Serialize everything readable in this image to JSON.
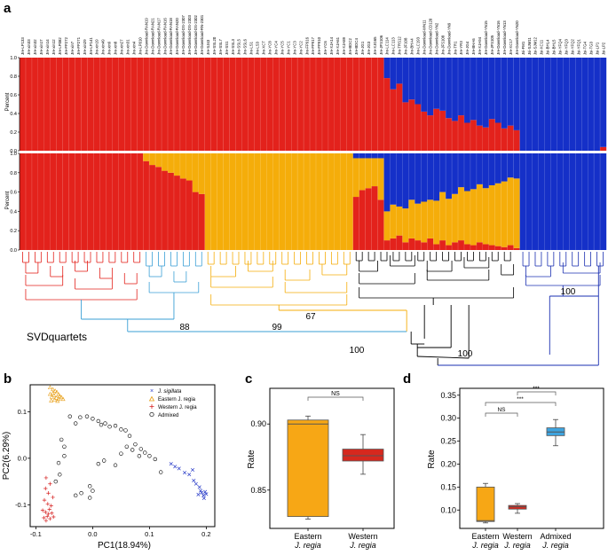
{
  "panel_letters": {
    "a": "a",
    "b": "b",
    "c": "c",
    "d": "d"
  },
  "colors": {
    "red": "#e3221c",
    "blue": "#1530c8",
    "orange": "#f5ad0a",
    "black": "#000000",
    "skyblue": "#3a9fd6",
    "navy": "#1a2fb0",
    "boxblue": "#3ea4df",
    "boxred": "#d6281e",
    "boxorange": "#f7a715"
  },
  "panel_a": {
    "ylabel_top": "Percent",
    "ylabel_bottom": "Percent",
    "yticks": [
      "0.0",
      "0.2",
      "0.4",
      "0.6",
      "0.8",
      "1.0"
    ],
    "sample_labels": [
      "Jre-LP133",
      "Jre-xin33",
      "Jre-xin32",
      "Jre-xin17",
      "Jre-xin14",
      "Jre-xin12",
      "Jre-LP082",
      "Jre-FP272",
      "Jre-xin7",
      "Jre-FP271",
      "Jre-xin29",
      "Jre-LP141",
      "Jre-xin19",
      "Jre-xin49",
      "Jre-xin9",
      "Jre-xin8",
      "Jre-xin27",
      "Jre-xin31",
      "Jre-xin4",
      "Jre-LP010",
      "Jre-Download-RAN19",
      "Jre-Download-RAN21",
      "Jre-Download-RAN17",
      "Jre-Download-RAN16",
      "Jre-Download-RAN18",
      "Jre-Download-RAN20",
      "Jre-Download-DS-2307",
      "Jre-Download-DS-2303",
      "Jre-Download-DS-2302",
      "Jre-Download-RN-2301",
      "Jre-SJ43",
      "Jre-SSL20",
      "Jre-SSL7",
      "Jre-SS1",
      "Jre-SSL3",
      "Jre-SSL5",
      "Jre-SSL6",
      "Jre-LS1",
      "Jre-LS3",
      "Jre-XCT",
      "Jre-YC8",
      "Jre-YC4",
      "Jre-YC5",
      "Jre-YC1",
      "Jre-YC3",
      "Jre-YC2",
      "Jre-FP916",
      "Jre-FP917",
      "Jre-FP910",
      "Jre-YC6",
      "Jre-XJA14",
      "Jre-XJA61",
      "Jre-XJA89",
      "Jre-BDC2",
      "Jre-BDC4",
      "Jre-JG1",
      "Jre-JG3",
      "Jre-XJG65",
      "Jre-JFS106",
      "Jre-LC114",
      "Jre-LC113",
      "Jre-TRS12",
      "Jre-JF108",
      "Jre-BHA4",
      "Jre-LC193",
      "Jre-Download-WN11",
      "Jre-Download-CD120",
      "Jre-Download-YN2",
      "Jre-JFS108",
      "Jre-Download-YN9",
      "Jre-TR1",
      "Jre-YR3",
      "Jre-JG4",
      "Jre-BHA6",
      "Jre-XJA94",
      "Jre-Download-YN15",
      "Jre-JFS105",
      "Jre-Download-YN16",
      "Jre-Download-YN13",
      "Jre-XC17",
      "Jre-Download-YN20",
      "Jsi-FM1",
      "Jsi-SJM11",
      "Jsi-SJM12",
      "Jsi-XC11",
      "Jsi-BHL4",
      "Jsi-BHL5",
      "Jsi-YFQ4",
      "Jsi-YFQ3",
      "Jsi-YFQ2",
      "Jsi-YFQ1",
      "Jsi-TG4",
      "Jsi-TG3",
      "Jsi-LP1",
      "Jsi-LP2"
    ],
    "tree_label": "SVDquartets",
    "bootstrap_labels": [
      "88",
      "99",
      "67",
      "100",
      "100",
      "100"
    ]
  },
  "panel_b": {
    "chart_data": {
      "type": "scatter",
      "xlabel": "PC1(18.94%)",
      "ylabel": "PC2(6.29%)",
      "xlim": [
        -0.11,
        0.215
      ],
      "ylim": [
        -0.147,
        0.158
      ],
      "xticks": [
        "-0.1",
        "0.0",
        "0.1",
        "0.2"
      ],
      "yticks": [
        "-0.1",
        "0.0",
        "0.1"
      ],
      "legend_position": "top-right",
      "series": [
        {
          "name": "J. sigillata",
          "marker": "x",
          "color": "#2a3cc8",
          "points": [
            [
              0.138,
              -0.012
            ],
            [
              0.145,
              -0.018
            ],
            [
              0.152,
              -0.022
            ],
            [
              0.162,
              -0.031
            ],
            [
              0.17,
              -0.035
            ],
            [
              0.178,
              -0.048
            ],
            [
              0.182,
              -0.055
            ],
            [
              0.188,
              -0.062
            ],
            [
              0.19,
              -0.07
            ],
            [
              0.192,
              -0.074
            ],
            [
              0.195,
              -0.08
            ],
            [
              0.198,
              -0.072
            ],
            [
              0.2,
              -0.077
            ],
            [
              0.196,
              -0.086
            ],
            [
              0.186,
              -0.078
            ],
            [
              0.176,
              -0.025
            ]
          ]
        },
        {
          "name": "Eastern J. regia",
          "marker": "triangle",
          "color": "#e8a018",
          "points": [
            [
              -0.075,
              0.152
            ],
            [
              -0.07,
              0.148
            ],
            [
              -0.066,
              0.145
            ],
            [
              -0.063,
              0.142
            ],
            [
              -0.07,
              0.14
            ],
            [
              -0.075,
              0.138
            ],
            [
              -0.06,
              0.137
            ],
            [
              -0.068,
              0.135
            ],
            [
              -0.058,
              0.134
            ],
            [
              -0.072,
              0.132
            ],
            [
              -0.064,
              0.13
            ],
            [
              -0.055,
              0.131
            ],
            [
              -0.06,
              0.127
            ],
            [
              -0.067,
              0.126
            ],
            [
              -0.052,
              0.127
            ],
            [
              -0.073,
              0.124
            ],
            [
              -0.062,
              0.123
            ]
          ]
        },
        {
          "name": "Western J. regia",
          "marker": "plus",
          "color": "#d62020",
          "points": [
            [
              -0.082,
              -0.042
            ],
            [
              -0.075,
              -0.055
            ],
            [
              -0.083,
              -0.065
            ],
            [
              -0.078,
              -0.075
            ],
            [
              -0.085,
              -0.09
            ],
            [
              -0.079,
              -0.098
            ],
            [
              -0.073,
              -0.102
            ],
            [
              -0.088,
              -0.112
            ],
            [
              -0.083,
              -0.116
            ],
            [
              -0.078,
              -0.12
            ],
            [
              -0.072,
              -0.118
            ],
            [
              -0.08,
              -0.125
            ],
            [
              -0.086,
              -0.128
            ],
            [
              -0.075,
              -0.13
            ],
            [
              -0.069,
              -0.126
            ],
            [
              -0.082,
              -0.134
            ],
            [
              -0.076,
              -0.11
            ],
            [
              -0.07,
              -0.084
            ]
          ]
        },
        {
          "name": "Admixed",
          "marker": "circle",
          "color": "#000000",
          "points": [
            [
              -0.055,
              0.04
            ],
            [
              -0.05,
              0.025
            ],
            [
              -0.04,
              0.09
            ],
            [
              -0.03,
              0.075
            ],
            [
              -0.022,
              0.088
            ],
            [
              -0.01,
              0.09
            ],
            [
              0.0,
              0.085
            ],
            [
              0.01,
              0.08
            ],
            [
              0.015,
              0.072
            ],
            [
              0.022,
              0.075
            ],
            [
              0.03,
              0.068
            ],
            [
              0.04,
              0.07
            ],
            [
              0.05,
              0.062
            ],
            [
              0.058,
              0.06
            ],
            [
              0.065,
              0.048
            ],
            [
              0.075,
              0.03
            ],
            [
              0.085,
              0.02
            ],
            [
              0.092,
              0.012
            ],
            [
              0.1,
              0.005
            ],
            [
              0.11,
              -0.002
            ],
            [
              0.06,
              0.025
            ],
            [
              0.07,
              0.018
            ],
            [
              0.02,
              -0.005
            ],
            [
              0.01,
              -0.012
            ],
            [
              -0.005,
              -0.06
            ],
            [
              0.0,
              -0.07
            ],
            [
              -0.02,
              -0.075
            ],
            [
              -0.03,
              -0.08
            ],
            [
              -0.005,
              -0.085
            ],
            [
              0.05,
              0.01
            ],
            [
              0.04,
              -0.015
            ],
            [
              0.082,
              0.005
            ],
            [
              -0.06,
              -0.01
            ],
            [
              -0.058,
              -0.035
            ],
            [
              -0.065,
              -0.05
            ],
            [
              -0.05,
              0.005
            ],
            [
              0.12,
              -0.03
            ]
          ]
        }
      ]
    }
  },
  "panel_c": {
    "chart_data": {
      "type": "box",
      "ylabel": "Rate",
      "ylim": [
        0.821,
        0.927
      ],
      "yticks": [
        "0.85",
        "0.90"
      ],
      "categories": [
        [
          "Eastern",
          "J. regia"
        ],
        [
          "Western",
          "J. regia"
        ]
      ],
      "boxes": [
        {
          "min": 0.828,
          "q1": 0.83,
          "median": 0.9,
          "q3": 0.903,
          "max": 0.906,
          "color": "#f7a715"
        },
        {
          "min": 0.862,
          "q1": 0.872,
          "median": 0.876,
          "q3": 0.881,
          "max": 0.892,
          "color": "#d6281e"
        }
      ],
      "significance": [
        {
          "from": 0,
          "to": 1,
          "label": "NS"
        }
      ]
    }
  },
  "panel_d": {
    "chart_data": {
      "type": "box",
      "ylabel": "Rate",
      "ylim": [
        0.06,
        0.365
      ],
      "yticks": [
        "0.10",
        "0.15",
        "0.20",
        "0.25",
        "0.30",
        "0.35"
      ],
      "categories": [
        [
          "Eastern",
          "J. regia"
        ],
        [
          "Western",
          "J. regia"
        ],
        [
          "Admixed",
          "J. regia"
        ]
      ],
      "boxes": [
        {
          "min": 0.072,
          "q1": 0.075,
          "median": 0.077,
          "q3": 0.15,
          "max": 0.158,
          "color": "#f7a715"
        },
        {
          "min": 0.093,
          "q1": 0.102,
          "median": 0.107,
          "q3": 0.11,
          "max": 0.114,
          "color": "#d6281e"
        },
        {
          "min": 0.24,
          "q1": 0.262,
          "median": 0.27,
          "q3": 0.279,
          "max": 0.297,
          "color": "#3ea4df"
        }
      ],
      "significance": [
        {
          "from": 0,
          "to": 1,
          "label": "NS"
        },
        {
          "from": 0,
          "to": 2,
          "label": "***"
        },
        {
          "from": 1,
          "to": 2,
          "label": "***"
        }
      ]
    }
  }
}
